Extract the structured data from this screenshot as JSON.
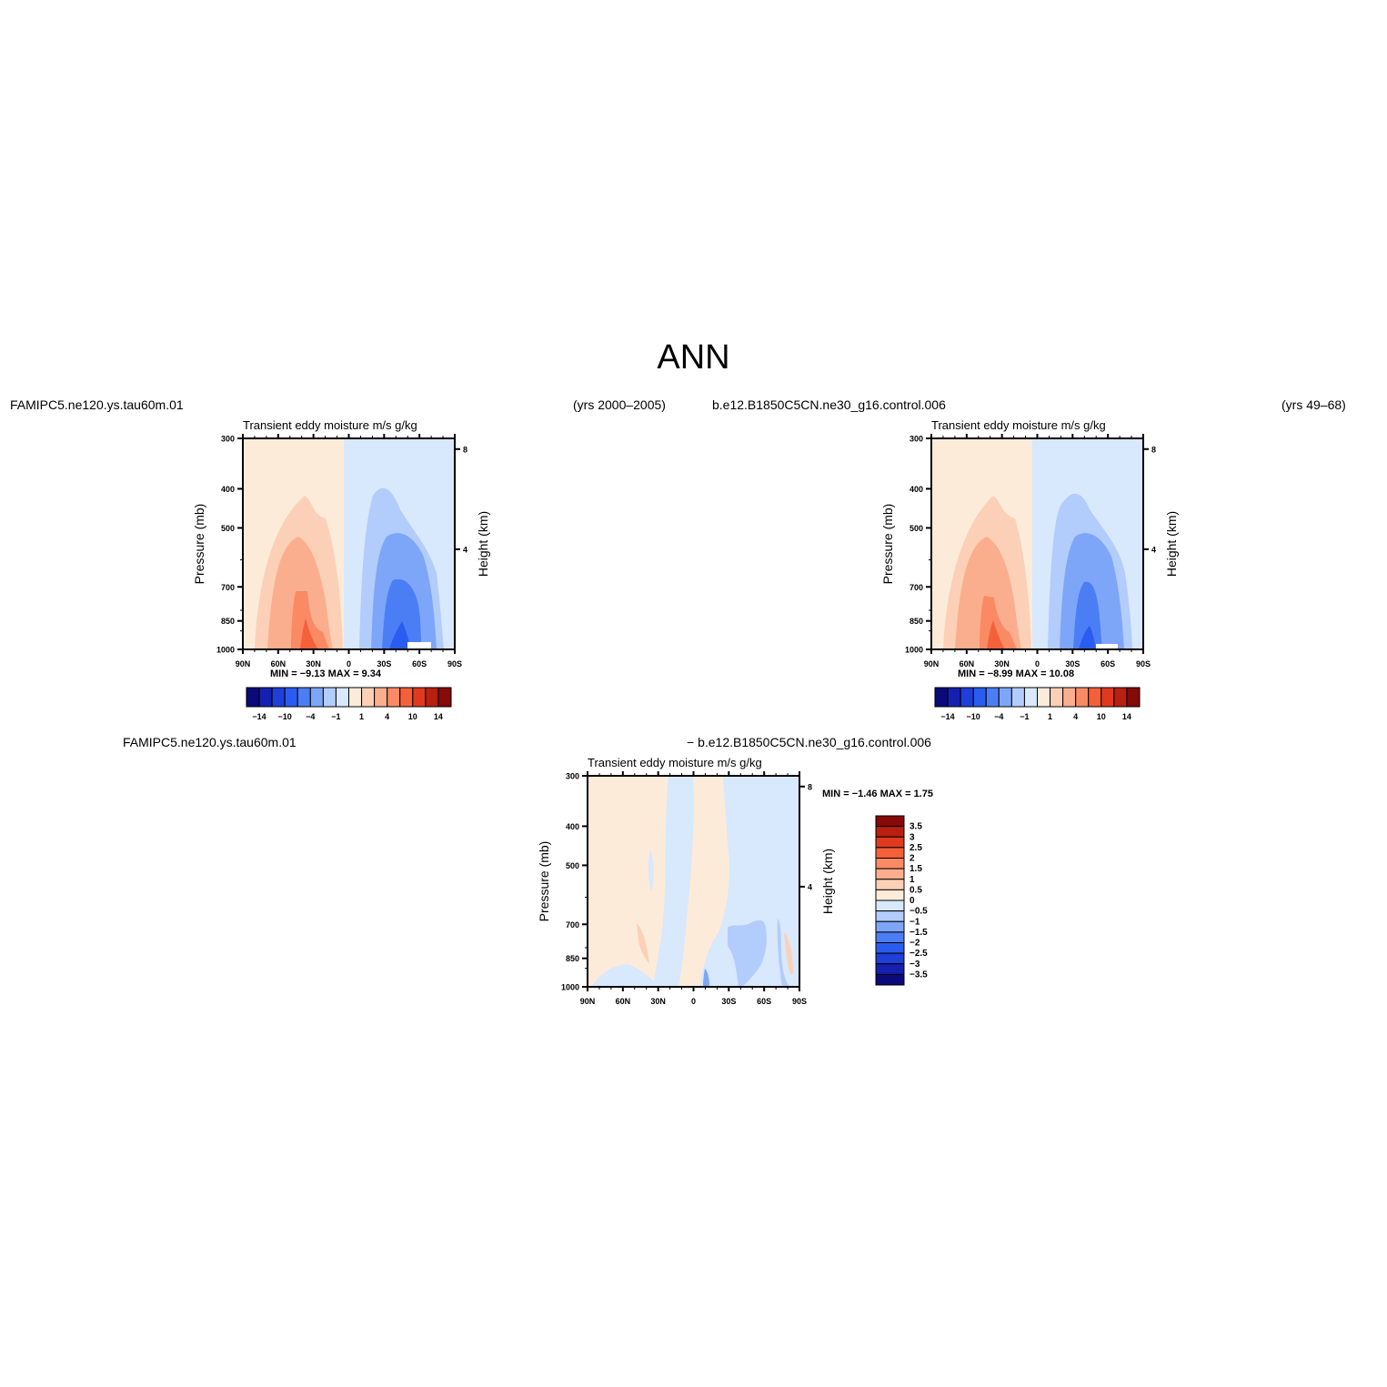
{
  "page_title": "ANN",
  "panels": [
    {
      "case_name": "FAMIPC5.ne120.ys.tau60m.01",
      "years": "(yrs 2000–2005)",
      "plot_title": "Transient  eddy  moisture m/s  g/kg",
      "min_max": "MIN =    −9.13    MAX =     9.34"
    },
    {
      "case_name": "b.e12.B1850C5CN.ne30_g16.control.006",
      "years": "(yrs 49–68)",
      "plot_title": "Transient  eddy  moisture m/s  g/kg",
      "min_max": "MIN =    −8.99    MAX =    10.08"
    },
    {
      "case_name": "FAMIPC5.ne120.ys.tau60m.01",
      "case_name_2": "−  b.e12.B1850C5CN.ne30_g16.control.006",
      "plot_title": "Transient  eddy  moisture m/s  g/kg",
      "min_max": "MIN =    −1.46    MAX =     1.75"
    }
  ],
  "axes": {
    "ylabel": "Pressure  (mb)",
    "ylabel_right": "Height  (km)",
    "pressure_ticks": [
      300,
      400,
      500,
      700,
      850,
      1000
    ],
    "height_ticks": [
      "8",
      "4"
    ],
    "lat_ticks": [
      "90N",
      "60N",
      "30N",
      "0",
      "30S",
      "60S",
      "90S"
    ]
  },
  "colorbar_abs": {
    "labels": [
      "−14",
      "−10",
      "−4",
      "−1",
      "1",
      "4",
      "10",
      "14"
    ],
    "colors": [
      "#0a0a7a",
      "#1520b0",
      "#1f3fd8",
      "#2b5cf0",
      "#4b7ef5",
      "#7ea6f8",
      "#b2ccfb",
      "#d8e8fd",
      "#fdebda",
      "#fcd0b6",
      "#fbae8e",
      "#f98a64",
      "#f4603a",
      "#e03a1e",
      "#b8200f",
      "#860a08"
    ]
  },
  "colorbar_diff": {
    "labels": [
      "3.5",
      "3",
      "2.5",
      "2",
      "1.5",
      "1",
      "0.5",
      "0",
      "−0.5",
      "−1",
      "−1.5",
      "−2",
      "−2.5",
      "−3",
      "−3.5"
    ],
    "colors": [
      "#860a08",
      "#b8200f",
      "#e03a1e",
      "#f4603a",
      "#f98a64",
      "#fbae8e",
      "#fcd0b6",
      "#fdebda",
      "#d8e8fd",
      "#b2ccfb",
      "#7ea6f8",
      "#4b7ef5",
      "#2b5cf0",
      "#1f3fd8",
      "#1520b0",
      "#0a0a7a"
    ]
  },
  "chart_data": [
    {
      "type": "heatmap",
      "title": "Transient  eddy  moisture m/s  g/kg",
      "xlabel": "",
      "ylabel": "Pressure  (mb)",
      "x_ticks": [
        "90N",
        "60N",
        "30N",
        "0",
        "30S",
        "60S",
        "90S"
      ],
      "y_ticks": [
        300,
        400,
        500,
        700,
        850,
        1000
      ],
      "min": -9.13,
      "max": 9.34
    },
    {
      "type": "heatmap",
      "title": "Transient  eddy  moisture m/s  g/kg",
      "xlabel": "",
      "ylabel": "Pressure  (mb)",
      "x_ticks": [
        "90N",
        "60N",
        "30N",
        "0",
        "30S",
        "60S",
        "90S"
      ],
      "y_ticks": [
        300,
        400,
        500,
        700,
        850,
        1000
      ],
      "min": -8.99,
      "max": 10.08
    },
    {
      "type": "heatmap",
      "title": "Transient  eddy  moisture m/s  g/kg",
      "xlabel": "",
      "ylabel": "Pressure  (mb)",
      "x_ticks": [
        "90N",
        "60N",
        "30N",
        "0",
        "30S",
        "60S",
        "90S"
      ],
      "y_ticks": [
        300,
        400,
        500,
        700,
        850,
        1000
      ],
      "min": -1.46,
      "max": 1.75
    }
  ]
}
